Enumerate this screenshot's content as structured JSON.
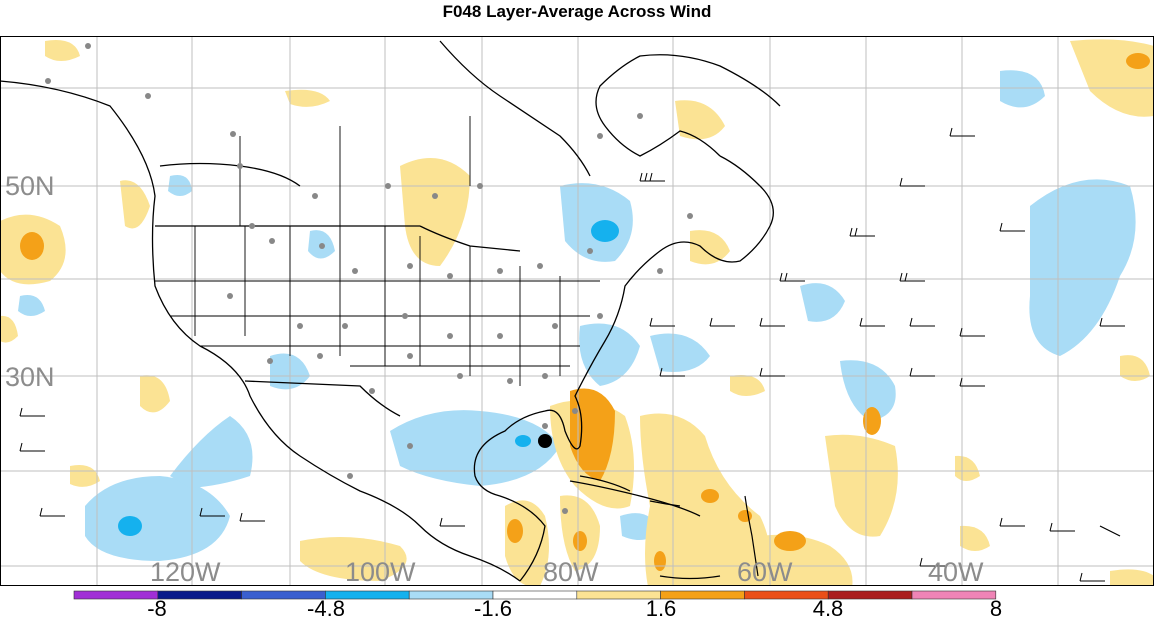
{
  "title": "F048 Layer-Average Across Wind",
  "axes": {
    "latitude_labels": [
      "50N",
      "30N"
    ],
    "longitude_labels": [
      "120W",
      "100W",
      "80W",
      "60W",
      "40W"
    ]
  },
  "colorbar": {
    "tick_labels": [
      "-8",
      "-4.8",
      "-1.6",
      "1.6",
      "4.8",
      "8"
    ],
    "colors": [
      "#a12fd6",
      "#0a1a8a",
      "#3a5fcf",
      "#15b1ee",
      "#a9dcf6",
      "#ffffff",
      "#fbe394",
      "#f4a118",
      "#ea4f18",
      "#aa1f1f",
      "#ef84b6"
    ]
  },
  "colors": {
    "positive_light": "#fbe394",
    "positive_mid": "#f4a118",
    "negative_light": "#a9dcf6",
    "negative_mid": "#15b1ee",
    "station_dot": "#888888",
    "grid": "#bfbfbf",
    "coastline": "#000000"
  },
  "legend_placement": "bottom",
  "grid": true,
  "icons": [
    "storm-center-marker"
  ]
}
